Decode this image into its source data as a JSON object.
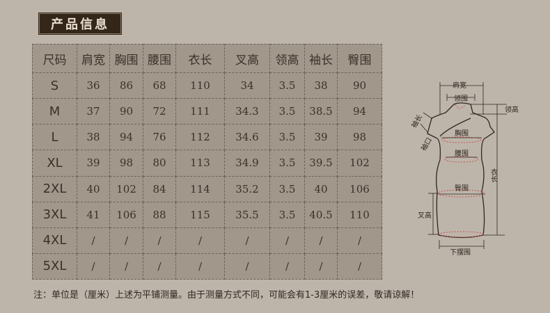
{
  "title": "产品信息",
  "table": {
    "headers": [
      "尺码",
      "肩宽",
      "胸围",
      "腰围",
      "衣长",
      "叉高",
      "领高",
      "袖长",
      "臀围"
    ],
    "rows": [
      [
        "S",
        "36",
        "86",
        "68",
        "110",
        "34",
        "3.5",
        "38",
        "90"
      ],
      [
        "M",
        "37",
        "90",
        "72",
        "111",
        "34.3",
        "3.5",
        "38.5",
        "94"
      ],
      [
        "L",
        "38",
        "94",
        "76",
        "112",
        "34.6",
        "3.5",
        "39",
        "98"
      ],
      [
        "XL",
        "39",
        "98",
        "80",
        "113",
        "34.9",
        "3.5",
        "39.5",
        "102"
      ],
      [
        "2XL",
        "40",
        "102",
        "84",
        "114",
        "35.2",
        "3.5",
        "40",
        "106"
      ],
      [
        "3XL",
        "41",
        "106",
        "88",
        "115",
        "35.5",
        "3.5",
        "40.5",
        "110"
      ],
      [
        "4XL",
        "/",
        "/",
        "/",
        "/",
        "/",
        "/",
        "/",
        "/"
      ],
      [
        "5XL",
        "/",
        "/",
        "/",
        "/",
        "/",
        "/",
        "/",
        "/"
      ]
    ]
  },
  "note": "注：单位是（厘米）上述为平铺测量。由于测量方式不同，可能会有1-3厘米的误差，敬请谅解！",
  "diagram": {
    "labels": {
      "shoulder": "肩宽",
      "collar": "领围",
      "collar_height": "领高",
      "sleeve_length": "袖长",
      "cuff": "袖口",
      "chest": "胸围",
      "waist": "腰围",
      "length": "衣长",
      "hip": "臀围",
      "slit": "叉高",
      "hem": "下摆围"
    }
  },
  "colors": {
    "background": "#bdb5aa",
    "table": "#a1978b",
    "title_box": "#35261a",
    "measure_ellipse": "#c0504d"
  }
}
